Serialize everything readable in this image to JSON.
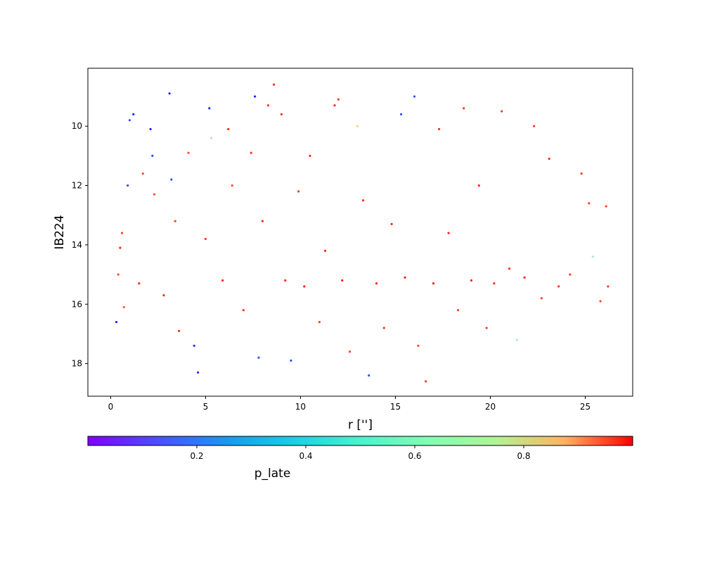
{
  "chart_data": {
    "type": "scatter",
    "title": "",
    "xlabel": "r ['']",
    "ylabel": "IB224",
    "xlim": [
      -1.2,
      27.5
    ],
    "ylim": [
      19.1,
      8.05
    ],
    "y_inverted": true,
    "x_ticks": [
      0,
      5,
      10,
      15,
      20,
      25
    ],
    "y_ticks": [
      10,
      12,
      14,
      16,
      18
    ],
    "grid": false,
    "legend": "none",
    "colorbar": {
      "label": "p_late",
      "range": [
        0.0,
        1.0
      ],
      "ticks": [
        0.2,
        0.4,
        0.6,
        0.8
      ],
      "colormap": "rainbow",
      "orientation": "horizontal",
      "placement": "bottom"
    },
    "marker_size": 1.6,
    "points": [
      [
        0.3,
        16.6,
        0.05
      ],
      [
        0.4,
        15.0,
        0.9
      ],
      [
        0.5,
        14.1,
        0.95
      ],
      [
        0.6,
        13.6,
        0.92
      ],
      [
        0.7,
        16.1,
        0.88
      ],
      [
        0.9,
        12.0,
        0.1
      ],
      [
        1.0,
        9.8,
        0.1
      ],
      [
        1.2,
        9.6,
        0.05
      ],
      [
        1.5,
        15.3,
        0.95
      ],
      [
        1.7,
        11.6,
        0.9
      ],
      [
        2.1,
        10.1,
        0.05
      ],
      [
        2.2,
        11.0,
        0.1
      ],
      [
        2.3,
        12.3,
        0.9
      ],
      [
        2.8,
        15.7,
        0.95
      ],
      [
        3.1,
        8.9,
        0.05
      ],
      [
        3.2,
        11.8,
        0.1
      ],
      [
        3.4,
        13.2,
        0.92
      ],
      [
        3.6,
        16.9,
        0.95
      ],
      [
        4.1,
        10.9,
        0.9
      ],
      [
        4.4,
        17.4,
        0.05
      ],
      [
        4.6,
        18.3,
        0.05
      ],
      [
        5.0,
        13.8,
        0.93
      ],
      [
        5.2,
        9.4,
        0.05
      ],
      [
        5.3,
        10.4,
        0.35
      ],
      [
        5.9,
        15.2,
        0.96
      ],
      [
        6.2,
        10.1,
        0.95
      ],
      [
        6.4,
        12.0,
        0.9
      ],
      [
        7.0,
        16.2,
        0.94
      ],
      [
        7.4,
        10.9,
        0.93
      ],
      [
        7.6,
        9.0,
        0.05
      ],
      [
        7.8,
        17.8,
        0.1
      ],
      [
        8.0,
        13.2,
        0.95
      ],
      [
        8.3,
        9.3,
        0.93
      ],
      [
        8.6,
        8.6,
        0.95
      ],
      [
        9.0,
        9.6,
        0.94
      ],
      [
        9.2,
        15.2,
        0.95
      ],
      [
        9.5,
        17.9,
        0.1
      ],
      [
        9.9,
        12.2,
        0.93
      ],
      [
        10.2,
        15.4,
        0.96
      ],
      [
        10.5,
        11.0,
        0.95
      ],
      [
        11.0,
        16.6,
        0.92
      ],
      [
        11.3,
        14.2,
        0.95
      ],
      [
        11.8,
        9.3,
        0.95
      ],
      [
        12.0,
        9.1,
        0.94
      ],
      [
        12.2,
        15.2,
        0.97
      ],
      [
        12.6,
        17.6,
        0.92
      ],
      [
        13.0,
        10.0,
        0.7
      ],
      [
        13.3,
        12.5,
        0.95
      ],
      [
        13.6,
        18.4,
        0.1
      ],
      [
        14.0,
        15.3,
        0.96
      ],
      [
        14.4,
        16.8,
        0.93
      ],
      [
        14.8,
        13.3,
        0.95
      ],
      [
        15.3,
        9.6,
        0.1
      ],
      [
        15.5,
        15.1,
        0.97
      ],
      [
        16.0,
        9.0,
        0.1
      ],
      [
        16.2,
        17.4,
        0.92
      ],
      [
        16.6,
        18.6,
        0.93
      ],
      [
        17.0,
        15.3,
        0.96
      ],
      [
        17.3,
        10.1,
        0.94
      ],
      [
        17.8,
        13.6,
        0.95
      ],
      [
        18.3,
        16.2,
        0.93
      ],
      [
        18.6,
        9.4,
        0.93
      ],
      [
        19.0,
        15.2,
        0.96
      ],
      [
        19.4,
        12.0,
        0.95
      ],
      [
        19.8,
        16.8,
        0.92
      ],
      [
        20.2,
        15.3,
        0.95
      ],
      [
        20.6,
        9.5,
        0.93
      ],
      [
        21.0,
        14.8,
        0.94
      ],
      [
        21.4,
        17.2,
        0.35
      ],
      [
        21.8,
        15.1,
        0.96
      ],
      [
        22.3,
        10.0,
        0.93
      ],
      [
        22.7,
        15.8,
        0.92
      ],
      [
        23.1,
        11.1,
        0.94
      ],
      [
        23.6,
        15.4,
        0.93
      ],
      [
        24.2,
        15.0,
        0.92
      ],
      [
        24.8,
        11.6,
        0.93
      ],
      [
        25.2,
        12.6,
        0.92
      ],
      [
        25.4,
        14.4,
        0.35
      ],
      [
        25.8,
        15.9,
        0.9
      ],
      [
        26.1,
        12.7,
        0.92
      ],
      [
        26.2,
        15.4,
        0.93
      ]
    ]
  }
}
